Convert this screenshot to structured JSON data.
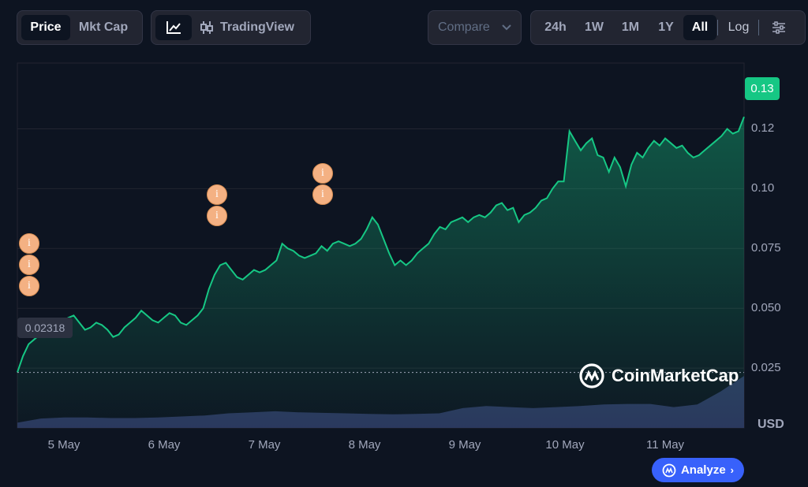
{
  "toolbar": {
    "price_tab": "Price",
    "mktcap_tab": "Mkt Cap",
    "tradingview_label": "TradingView",
    "compare_label": "Compare",
    "ranges": [
      "24h",
      "1W",
      "1M",
      "1Y",
      "All"
    ],
    "active_range": "All",
    "log_label": "Log"
  },
  "brand": {
    "name": "CoinMarketCap"
  },
  "analyze_label": "Analyze",
  "currency_label": "USD",
  "colors": {
    "line": "#16c784",
    "volume": "#2f3a64",
    "current_badge": "#16c784",
    "marker": "#f4b183"
  },
  "chart_data": {
    "type": "area",
    "x_ticks": [
      "5 May",
      "6 May",
      "7 May",
      "8 May",
      "9 May",
      "10 May",
      "11 May"
    ],
    "y_ticks": [
      "0.025",
      "0.050",
      "0.075",
      "0.10",
      "0.12"
    ],
    "ylim": [
      0,
      0.1525
    ],
    "current_price": "0.13",
    "start_price": "0.02318",
    "series": [
      {
        "values": [
          0.0232,
          0.03,
          0.035,
          0.037,
          0.039,
          0.04,
          0.04,
          0.042,
          0.044,
          0.046,
          0.047,
          0.044,
          0.041,
          0.042,
          0.044,
          0.043,
          0.041,
          0.038,
          0.039,
          0.042,
          0.044,
          0.046,
          0.049,
          0.047,
          0.045,
          0.044,
          0.046,
          0.048,
          0.047,
          0.044,
          0.043,
          0.045,
          0.047,
          0.05,
          0.058,
          0.064,
          0.068,
          0.069,
          0.066,
          0.063,
          0.062,
          0.064,
          0.066,
          0.065,
          0.066,
          0.068,
          0.07,
          0.077,
          0.075,
          0.074,
          0.072,
          0.071,
          0.072,
          0.073,
          0.076,
          0.074,
          0.077,
          0.078,
          0.077,
          0.076,
          0.077,
          0.079,
          0.083,
          0.088,
          0.085,
          0.079,
          0.073,
          0.068,
          0.07,
          0.068,
          0.07,
          0.073,
          0.075,
          0.077,
          0.081,
          0.084,
          0.083,
          0.086,
          0.087,
          0.088,
          0.086,
          0.088,
          0.089,
          0.088,
          0.09,
          0.093,
          0.094,
          0.091,
          0.092,
          0.086,
          0.089,
          0.09,
          0.092,
          0.095,
          0.096,
          0.1,
          0.103,
          0.103,
          0.124,
          0.12,
          0.116,
          0.119,
          0.121,
          0.114,
          0.113,
          0.107,
          0.113,
          0.109,
          0.101,
          0.11,
          0.115,
          0.113,
          0.117,
          0.12,
          0.118,
          0.121,
          0.119,
          0.117,
          0.118,
          0.115,
          0.113,
          0.114,
          0.116,
          0.118,
          0.12,
          0.122,
          0.125,
          0.123,
          0.124,
          0.13
        ]
      }
    ],
    "volume": [
      0.1,
      0.18,
      0.2,
      0.2,
      0.19,
      0.19,
      0.2,
      0.22,
      0.24,
      0.28,
      0.3,
      0.32,
      0.3,
      0.29,
      0.28,
      0.27,
      0.26,
      0.27,
      0.28,
      0.38,
      0.42,
      0.4,
      0.38,
      0.4,
      0.42,
      0.45,
      0.46,
      0.46,
      0.4,
      0.45,
      0.7,
      1.0
    ]
  }
}
